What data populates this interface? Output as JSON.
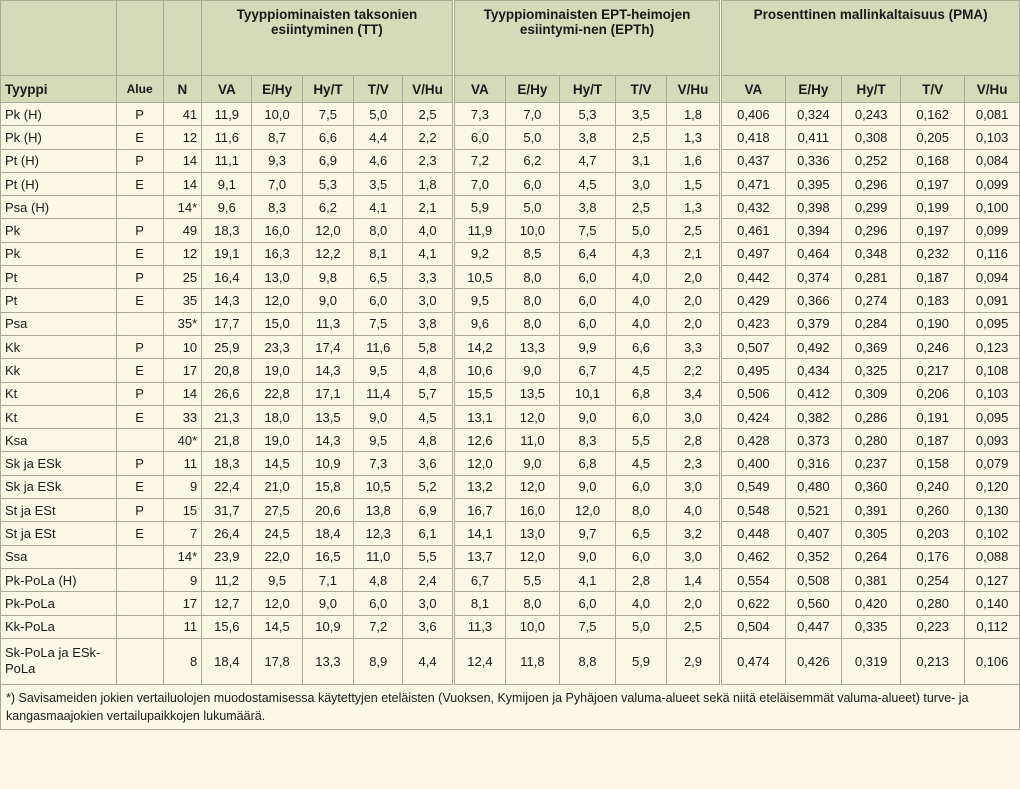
{
  "group_headers": [
    "Tyyppiominaisten taksonien esiintyminen (TT)",
    "Tyyppiominaisten EPT-heimojen esiintymi-nen (EPTh)",
    "Prosenttinen mallinkaltaisuus (PMA)"
  ],
  "columns": {
    "tyyppi": "Tyyppi",
    "alue": "Alue",
    "n": "N",
    "sub": [
      "VA",
      "E/Hy",
      "Hy/T",
      "T/V",
      "V/Hu"
    ]
  },
  "rows": [
    {
      "tyyppi": "Pk (H)",
      "alue": "P",
      "n": "41",
      "tt": [
        "11,9",
        "10,0",
        "7,5",
        "5,0",
        "2,5"
      ],
      "epth": [
        "7,3",
        "7,0",
        "5,3",
        "3,5",
        "1,8"
      ],
      "pma": [
        "0,406",
        "0,324",
        "0,243",
        "0,162",
        "0,081"
      ]
    },
    {
      "tyyppi": "Pk (H)",
      "alue": "E",
      "n": "12",
      "tt": [
        "11,6",
        "8,7",
        "6,6",
        "4,4",
        "2,2"
      ],
      "epth": [
        "6,0",
        "5,0",
        "3,8",
        "2,5",
        "1,3"
      ],
      "pma": [
        "0,418",
        "0,411",
        "0,308",
        "0,205",
        "0,103"
      ]
    },
    {
      "tyyppi": "Pt (H)",
      "alue": "P",
      "n": "14",
      "tt": [
        "11,1",
        "9,3",
        "6,9",
        "4,6",
        "2,3"
      ],
      "epth": [
        "7,2",
        "6,2",
        "4,7",
        "3,1",
        "1,6"
      ],
      "pma": [
        "0,437",
        "0,336",
        "0,252",
        "0,168",
        "0,084"
      ]
    },
    {
      "tyyppi": "Pt (H)",
      "alue": "E",
      "n": "14",
      "tt": [
        "9,1",
        "7,0",
        "5,3",
        "3,5",
        "1,8"
      ],
      "epth": [
        "7,0",
        "6,0",
        "4,5",
        "3,0",
        "1,5"
      ],
      "pma": [
        "0,471",
        "0,395",
        "0,296",
        "0,197",
        "0,099"
      ]
    },
    {
      "tyyppi": "Psa (H)",
      "alue": "",
      "n": "14*",
      "tt": [
        "9,6",
        "8,3",
        "6,2",
        "4,1",
        "2,1"
      ],
      "epth": [
        "5,9",
        "5,0",
        "3,8",
        "2,5",
        "1,3"
      ],
      "pma": [
        "0,432",
        "0,398",
        "0,299",
        "0,199",
        "0,100"
      ]
    },
    {
      "tyyppi": "Pk",
      "alue": "P",
      "n": "49",
      "tt": [
        "18,3",
        "16,0",
        "12,0",
        "8,0",
        "4,0"
      ],
      "epth": [
        "11,9",
        "10,0",
        "7,5",
        "5,0",
        "2,5"
      ],
      "pma": [
        "0,461",
        "0,394",
        "0,296",
        "0,197",
        "0,099"
      ]
    },
    {
      "tyyppi": "Pk",
      "alue": "E",
      "n": "12",
      "tt": [
        "19,1",
        "16,3",
        "12,2",
        "8,1",
        "4,1"
      ],
      "epth": [
        "9,2",
        "8,5",
        "6,4",
        "4,3",
        "2,1"
      ],
      "pma": [
        "0,497",
        "0,464",
        "0,348",
        "0,232",
        "0,116"
      ]
    },
    {
      "tyyppi": "Pt",
      "alue": "P",
      "n": "25",
      "tt": [
        "16,4",
        "13,0",
        "9,8",
        "6,5",
        "3,3"
      ],
      "epth": [
        "10,5",
        "8,0",
        "6,0",
        "4,0",
        "2,0"
      ],
      "pma": [
        "0,442",
        "0,374",
        "0,281",
        "0,187",
        "0,094"
      ]
    },
    {
      "tyyppi": "Pt",
      "alue": "E",
      "n": "35",
      "tt": [
        "14,3",
        "12,0",
        "9,0",
        "6,0",
        "3,0"
      ],
      "epth": [
        "9,5",
        "8,0",
        "6,0",
        "4,0",
        "2,0"
      ],
      "pma": [
        "0,429",
        "0,366",
        "0,274",
        "0,183",
        "0,091"
      ]
    },
    {
      "tyyppi": "Psa",
      "alue": "",
      "n": "35*",
      "tt": [
        "17,7",
        "15,0",
        "11,3",
        "7,5",
        "3,8"
      ],
      "epth": [
        "9,6",
        "8,0",
        "6,0",
        "4,0",
        "2,0"
      ],
      "pma": [
        "0,423",
        "0,379",
        "0,284",
        "0,190",
        "0,095"
      ]
    },
    {
      "tyyppi": "Kk",
      "alue": "P",
      "n": "10",
      "tt": [
        "25,9",
        "23,3",
        "17,4",
        "11,6",
        "5,8"
      ],
      "epth": [
        "14,2",
        "13,3",
        "9,9",
        "6,6",
        "3,3"
      ],
      "pma": [
        "0,507",
        "0,492",
        "0,369",
        "0,246",
        "0,123"
      ]
    },
    {
      "tyyppi": "Kk",
      "alue": "E",
      "n": "17",
      "tt": [
        "20,8",
        "19,0",
        "14,3",
        "9,5",
        "4,8"
      ],
      "epth": [
        "10,6",
        "9,0",
        "6,7",
        "4,5",
        "2,2"
      ],
      "pma": [
        "0,495",
        "0,434",
        "0,325",
        "0,217",
        "0,108"
      ]
    },
    {
      "tyyppi": "Kt",
      "alue": "P",
      "n": "14",
      "tt": [
        "26,6",
        "22,8",
        "17,1",
        "11,4",
        "5,7"
      ],
      "epth": [
        "15,5",
        "13,5",
        "10,1",
        "6,8",
        "3,4"
      ],
      "pma": [
        "0,506",
        "0,412",
        "0,309",
        "0,206",
        "0,103"
      ]
    },
    {
      "tyyppi": "Kt",
      "alue": "E",
      "n": "33",
      "tt": [
        "21,3",
        "18,0",
        "13,5",
        "9,0",
        "4,5"
      ],
      "epth": [
        "13,1",
        "12,0",
        "9,0",
        "6,0",
        "3,0"
      ],
      "pma": [
        "0,424",
        "0,382",
        "0,286",
        "0,191",
        "0,095"
      ]
    },
    {
      "tyyppi": "Ksa",
      "alue": "",
      "n": "40*",
      "tt": [
        "21,8",
        "19,0",
        "14,3",
        "9,5",
        "4,8"
      ],
      "epth": [
        "12,6",
        "11,0",
        "8,3",
        "5,5",
        "2,8"
      ],
      "pma": [
        "0,428",
        "0,373",
        "0,280",
        "0,187",
        "0,093"
      ]
    },
    {
      "tyyppi": "Sk ja ESk",
      "alue": "P",
      "n": "11",
      "tt": [
        "18,3",
        "14,5",
        "10,9",
        "7,3",
        "3,6"
      ],
      "epth": [
        "12,0",
        "9,0",
        "6,8",
        "4,5",
        "2,3"
      ],
      "pma": [
        "0,400",
        "0,316",
        "0,237",
        "0,158",
        "0,079"
      ]
    },
    {
      "tyyppi": "Sk ja ESk",
      "alue": "E",
      "n": "9",
      "tt": [
        "22,4",
        "21,0",
        "15,8",
        "10,5",
        "5,2"
      ],
      "epth": [
        "13,2",
        "12,0",
        "9,0",
        "6,0",
        "3,0"
      ],
      "pma": [
        "0,549",
        "0,480",
        "0,360",
        "0,240",
        "0,120"
      ]
    },
    {
      "tyyppi": "St ja ESt",
      "alue": "P",
      "n": "15",
      "tt": [
        "31,7",
        "27,5",
        "20,6",
        "13,8",
        "6,9"
      ],
      "epth": [
        "16,7",
        "16,0",
        "12,0",
        "8,0",
        "4,0"
      ],
      "pma": [
        "0,548",
        "0,521",
        "0,391",
        "0,260",
        "0,130"
      ]
    },
    {
      "tyyppi": "St ja ESt",
      "alue": "E",
      "n": "7",
      "tt": [
        "26,4",
        "24,5",
        "18,4",
        "12,3",
        "6,1"
      ],
      "epth": [
        "14,1",
        "13,0",
        "9,7",
        "6,5",
        "3,2"
      ],
      "pma": [
        "0,448",
        "0,407",
        "0,305",
        "0,203",
        "0,102"
      ]
    },
    {
      "tyyppi": "Ssa",
      "alue": "",
      "n": "14*",
      "tt": [
        "23,9",
        "22,0",
        "16,5",
        "11,0",
        "5,5"
      ],
      "epth": [
        "13,7",
        "12,0",
        "9,0",
        "6,0",
        "3,0"
      ],
      "pma": [
        "0,462",
        "0,352",
        "0,264",
        "0,176",
        "0,088"
      ]
    },
    {
      "tyyppi": "Pk-PoLa (H)",
      "alue": "",
      "n": "9",
      "tt": [
        "11,2",
        "9,5",
        "7,1",
        "4,8",
        "2,4"
      ],
      "epth": [
        "6,7",
        "5,5",
        "4,1",
        "2,8",
        "1,4"
      ],
      "pma": [
        "0,554",
        "0,508",
        "0,381",
        "0,254",
        "0,127"
      ]
    },
    {
      "tyyppi": "Pk-PoLa",
      "alue": "",
      "n": "17",
      "tt": [
        "12,7",
        "12,0",
        "9,0",
        "6,0",
        "3,0"
      ],
      "epth": [
        "8,1",
        "8,0",
        "6,0",
        "4,0",
        "2,0"
      ],
      "pma": [
        "0,622",
        "0,560",
        "0,420",
        "0,280",
        "0,140"
      ]
    },
    {
      "tyyppi": "Kk-PoLa",
      "alue": "",
      "n": "11",
      "tt": [
        "15,6",
        "14,5",
        "10,9",
        "7,2",
        "3,6"
      ],
      "epth": [
        "11,3",
        "10,0",
        "7,5",
        "5,0",
        "2,5"
      ],
      "pma": [
        "0,504",
        "0,447",
        "0,335",
        "0,223",
        "0,112"
      ]
    },
    {
      "tyyppi": "Sk-PoLa ja ESk-PoLa",
      "alue": "",
      "n": "8",
      "tt": [
        "18,4",
        "17,8",
        "13,3",
        "8,9",
        "4,4"
      ],
      "epth": [
        "12,4",
        "11,8",
        "8,8",
        "5,9",
        "2,9"
      ],
      "pma": [
        "0,474",
        "0,426",
        "0,319",
        "0,213",
        "0,106"
      ]
    }
  ],
  "footnote": "*) Savisameiden jokien vertailuolojen muodostamisessa käytettyjen eteläisten (Vuoksen, Kymijoen ja Pyhäjoen valuma-alueet sekä niitä eteläisemmät valuma-alueet) turve- ja kangasmaajokien vertailupaikkojen lukumäärä."
}
